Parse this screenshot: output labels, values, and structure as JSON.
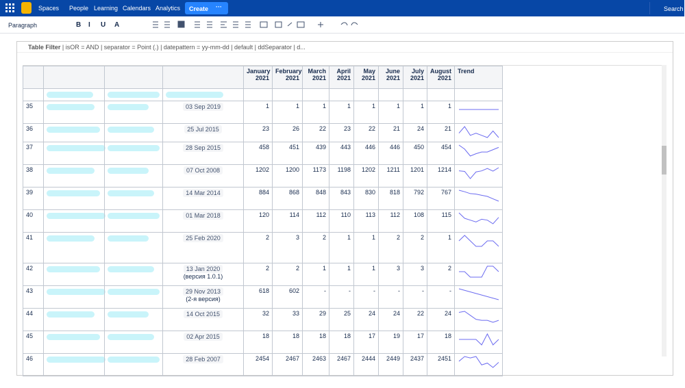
{
  "nav": {
    "items": [
      "Spaces",
      "People",
      "Learning",
      "Calendars",
      "Analytics"
    ],
    "create": "Create",
    "search": "Search"
  },
  "toolbar": {
    "paragraph": "Paragraph",
    "format": [
      "B",
      "I",
      "U",
      "A"
    ]
  },
  "macro": {
    "title": "Table Filter",
    "params": "| isOR = AND | separator = Point (.) | datepattern = yy-mm-dd | default | ddSeparator | d..."
  },
  "table": {
    "headers": [
      "January 2021",
      "February 2021",
      "March 2021",
      "April 2021",
      "May 2021",
      "June 2021",
      "July 2021",
      "August 2021"
    ],
    "trend": "Trend",
    "rows": [
      {
        "num": "35",
        "date": "03 Sep 2019",
        "values": [
          1,
          1,
          1,
          1,
          1,
          1,
          1,
          1
        ]
      },
      {
        "num": "36",
        "date": "25 Jul 2015",
        "values": [
          23,
          26,
          22,
          23,
          22,
          21,
          24,
          21
        ]
      },
      {
        "num": "37",
        "date": "28 Sep 2015",
        "values": [
          458,
          451,
          439,
          443,
          446,
          446,
          450,
          454
        ]
      },
      {
        "num": "38",
        "date": "07 Oct 2008",
        "values": [
          1202,
          1200,
          1173,
          1198,
          1202,
          1211,
          1201,
          1214
        ]
      },
      {
        "num": "39",
        "date": "14 Mar 2014",
        "values": [
          884,
          868,
          848,
          843,
          830,
          818,
          792,
          767
        ]
      },
      {
        "num": "40",
        "date": "01 Mar 2018",
        "values": [
          120,
          114,
          112,
          110,
          113,
          112,
          108,
          115
        ]
      },
      {
        "num": "41",
        "date": "25 Feb 2020",
        "values": [
          2,
          3,
          2,
          1,
          1,
          2,
          2,
          1
        ]
      },
      {
        "num": "42",
        "date": "13 Jan 2020",
        "note": "(версия 1.0.1)",
        "values": [
          2,
          2,
          1,
          1,
          1,
          3,
          3,
          2
        ]
      },
      {
        "num": "43",
        "date": "29 Nov 2013",
        "note": "(2-я версия)",
        "values": [
          618,
          602,
          "-",
          "-",
          "-",
          "-",
          "-",
          "-"
        ]
      },
      {
        "num": "44",
        "date": "14 Oct 2015",
        "values": [
          32,
          33,
          29,
          25,
          24,
          24,
          22,
          24
        ]
      },
      {
        "num": "45",
        "date": "02 Apr 2015",
        "values": [
          18,
          18,
          18,
          18,
          17,
          19,
          17,
          18
        ]
      },
      {
        "num": "46",
        "date": "28 Feb 2007",
        "values": [
          2454,
          2467,
          2463,
          2467,
          2444,
          2449,
          2437,
          2451
        ]
      }
    ]
  }
}
